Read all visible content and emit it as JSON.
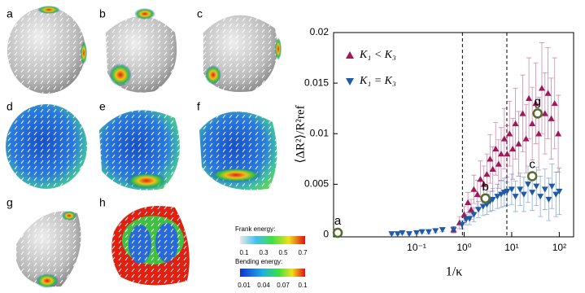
{
  "panels": [
    {
      "label": "a"
    },
    {
      "label": "b"
    },
    {
      "label": "c"
    },
    {
      "label": "d"
    },
    {
      "label": "e"
    },
    {
      "label": "f"
    },
    {
      "label": "g"
    },
    {
      "label": "h"
    }
  ],
  "colorbars": [
    {
      "title": "Frank energy:",
      "ticks": [
        "0.1",
        "0.3",
        "0.5",
        "0.7"
      ]
    },
    {
      "title": "Bending energy:",
      "ticks": [
        "0.01",
        "0.04",
        "0.07",
        "0.1"
      ]
    }
  ],
  "chart_data": {
    "type": "scatter",
    "xlabel": "1/κ",
    "ylabel": "⟨ΔR²⟩/R²ref",
    "xscale": "log",
    "xlim": [
      0.0018,
      200
    ],
    "ylim": [
      -0.0002,
      0.02
    ],
    "xticks": [
      {
        "value": 0.1,
        "label": "10⁻¹"
      },
      {
        "value": 1,
        "label": "10⁰"
      },
      {
        "value": 10,
        "label": "10¹"
      },
      {
        "value": 100,
        "label": "10²"
      }
    ],
    "yticks": [
      0,
      0.005,
      0.01,
      0.015,
      0.02
    ],
    "vlines": [
      0.92,
      7.9
    ],
    "legend": "upper left",
    "series": [
      {
        "name": "K₁ < K₃",
        "color": "#a0175a",
        "marker": "triangle-up",
        "x": [
          0.6,
          0.8,
          1.0,
          1.2,
          1.4,
          1.6,
          1.9,
          2.2,
          2.6,
          3,
          3.5,
          4,
          4.6,
          5.3,
          6,
          7,
          8,
          9,
          10.5,
          12,
          14,
          17,
          20,
          23,
          27,
          32,
          37,
          43,
          50,
          58,
          68,
          80,
          95
        ],
        "values": [
          0.0005,
          0.0012,
          0.002,
          0.0032,
          0.0025,
          0.0045,
          0.004,
          0.0055,
          0.005,
          0.006,
          0.0075,
          0.0065,
          0.0085,
          0.007,
          0.008,
          0.0095,
          0.008,
          0.01,
          0.0085,
          0.011,
          0.009,
          0.012,
          0.0095,
          0.0135,
          0.011,
          0.013,
          0.01,
          0.0145,
          0.012,
          0.014,
          0.0115,
          0.013,
          0.01
        ],
        "errors": [
          0.0003,
          0.0006,
          0.0008,
          0.001,
          0.001,
          0.0014,
          0.0014,
          0.0018,
          0.0018,
          0.002,
          0.0024,
          0.0022,
          0.0026,
          0.0024,
          0.0026,
          0.003,
          0.0028,
          0.0032,
          0.003,
          0.0035,
          0.0032,
          0.0038,
          0.0034,
          0.004,
          0.0036,
          0.004,
          0.0036,
          0.0045,
          0.004,
          0.0045,
          0.004,
          0.0045,
          0.0038
        ]
      },
      {
        "name": "K₁ = K₃",
        "color": "#1f5aa8",
        "marker": "triangle-down",
        "x": [
          0.03,
          0.04,
          0.05,
          0.07,
          0.1,
          0.13,
          0.18,
          0.25,
          0.35,
          0.6,
          0.9,
          1.1,
          1.3,
          1.6,
          2,
          2.5,
          3,
          3.5,
          4,
          5,
          6,
          7,
          8,
          10,
          12,
          15,
          18,
          22,
          27,
          33,
          40,
          50,
          60,
          70,
          85,
          100
        ],
        "values": [
          0.0001,
          0.0001,
          0.0002,
          0.0001,
          0.0002,
          0.0003,
          0.0003,
          0.0004,
          0.0005,
          0.0005,
          0.001,
          0.0015,
          0.0016,
          0.002,
          0.0025,
          0.0028,
          0.003,
          0.0033,
          0.0035,
          0.0038,
          0.004,
          0.0042,
          0.0043,
          0.0045,
          0.0038,
          0.0045,
          0.004,
          0.005,
          0.0042,
          0.0048,
          0.0038,
          0.0045,
          0.0035,
          0.0048,
          0.004,
          0.0043
        ],
        "errors": [
          0.0001,
          0.0001,
          0.0001,
          0.0001,
          0.0001,
          0.0001,
          0.0002,
          0.0002,
          0.0002,
          0.0003,
          0.0004,
          0.0005,
          0.0006,
          0.0007,
          0.0008,
          0.0009,
          0.001,
          0.001,
          0.0011,
          0.0012,
          0.0013,
          0.0014,
          0.0014,
          0.0015,
          0.0015,
          0.0016,
          0.0017,
          0.0018,
          0.0018,
          0.0019,
          0.002,
          0.002,
          0.0021,
          0.0022,
          0.0022,
          0.0023
        ]
      }
    ],
    "highlights": [
      {
        "label": "a",
        "x": 0.0022,
        "y": 0.0002
      },
      {
        "label": "b",
        "x": 2.8,
        "y": 0.0036
      },
      {
        "label": "c",
        "x": 27,
        "y": 0.0058
      },
      {
        "label": "g",
        "x": 35,
        "y": 0.012
      }
    ]
  }
}
